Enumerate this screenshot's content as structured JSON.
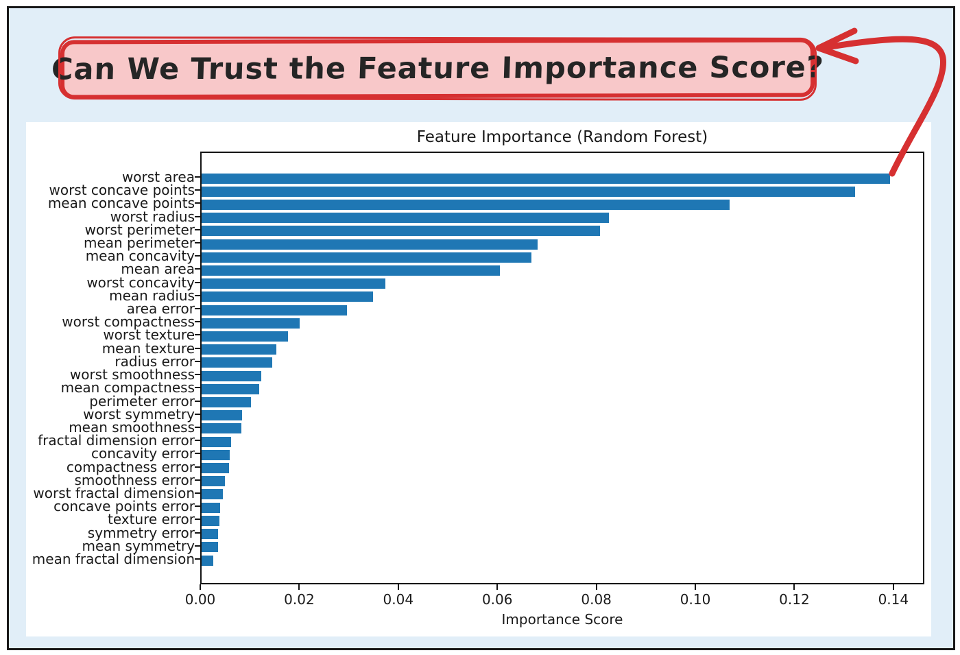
{
  "page": {
    "canvas_background": "#e1eef8",
    "frame_border_color": "#191919",
    "panel_background": "#ffffff"
  },
  "annotation": {
    "text": "Can We Trust the Feature Importance Score?",
    "fill_color": "#f8c8c9",
    "border_color": "#d63031",
    "text_color": "#252525",
    "arrow_color": "#d63031",
    "arrow_target": "tip of the 'worst area' bar"
  },
  "chart_data": {
    "type": "bar",
    "orientation": "horizontal",
    "title": "Feature Importance (Random Forest)",
    "xlabel": "Importance Score",
    "ylabel": "",
    "bar_color": "#1f77b4",
    "grid": false,
    "legend": null,
    "xlim": [
      0,
      0.1457
    ],
    "xtick_values": [
      0.0,
      0.02,
      0.04,
      0.06,
      0.08,
      0.1,
      0.12,
      0.14
    ],
    "xtick_labels": [
      "0.00",
      "0.02",
      "0.04",
      "0.06",
      "0.08",
      "0.10",
      "0.12",
      "0.14"
    ],
    "categories": [
      "worst area",
      "worst concave points",
      "mean concave points",
      "worst radius",
      "worst perimeter",
      "mean perimeter",
      "mean concavity",
      "mean area",
      "worst concavity",
      "mean radius",
      "area error",
      "worst compactness",
      "worst texture",
      "mean texture",
      "radius error",
      "worst smoothness",
      "mean compactness",
      "perimeter error",
      "worst symmetry",
      "mean smoothness",
      "fractal dimension error",
      "concavity error",
      "compactness error",
      "smoothness error",
      "worst fractal dimension",
      "concave points error",
      "texture error",
      "symmetry error",
      "mean symmetry",
      "mean fractal dimension"
    ],
    "values": [
      0.139,
      0.132,
      0.1067,
      0.0823,
      0.0804,
      0.0678,
      0.0666,
      0.0602,
      0.0371,
      0.0346,
      0.0294,
      0.0198,
      0.0174,
      0.0151,
      0.0142,
      0.012,
      0.0116,
      0.01,
      0.0082,
      0.008,
      0.006,
      0.0057,
      0.0055,
      0.0047,
      0.0043,
      0.0037,
      0.0036,
      0.0033,
      0.0033,
      0.0024
    ]
  }
}
